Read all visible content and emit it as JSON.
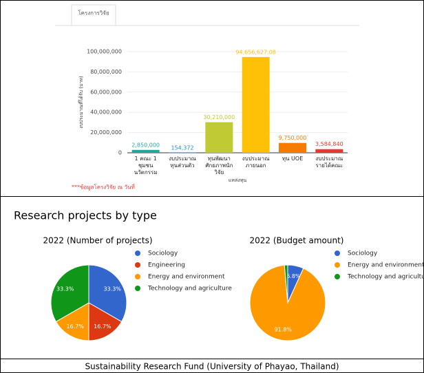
{
  "tab": "โครงการวิจัย",
  "heading": "Research projects by type",
  "caption": "Sustainability Research Fund (University of Phayao, Thailand)",
  "note": "***ข้อมูลโครงวิจัย ณ วันที่",
  "chart_data": [
    {
      "type": "bar",
      "y_label": "งบประมาณที่ได้รับ (บาท)",
      "x_label": "แหล่งทุน",
      "categories": [
        "1 คณะ 1 ชุมชน นวัตกรรม",
        "งบประมาณทุนส่วนตัว",
        "ทุนพัฒนาศักยภาพนักวิจัย",
        "งบประมาณภายนอก",
        "ทุน UOE",
        "งบประมาณรายได้คณะ"
      ],
      "values": [
        2850000,
        154372,
        30210000,
        94656627.08,
        9750000,
        3584840
      ],
      "value_labels": [
        "2,850,000",
        "154,372",
        "30,210,000",
        "94,656,627.08",
        "9,750,000",
        "3,584,840"
      ],
      "colors": [
        "#26a69a",
        "#1e88e5",
        "#c0ca33",
        "#ffc107",
        "#f57c00",
        "#e53935"
      ],
      "ylim": [
        0,
        100000000
      ],
      "yticks": [
        0,
        {
          "value": 20000000,
          "label": "20,000,000"
        },
        {
          "value": 40000000,
          "label": "40,000,000"
        },
        {
          "value": 60000000,
          "label": "60,000,000"
        },
        {
          "value": 80000000,
          "label": "80,000,000"
        },
        {
          "value": 100000000,
          "label": "100,000,000"
        }
      ],
      "grid": true
    },
    {
      "type": "pie",
      "title": "2022 (Number of projects)",
      "categories": [
        "Sociology",
        "Engineering",
        "Energy and environment",
        "Technology and agriculture"
      ],
      "values": [
        33.3,
        16.7,
        16.7,
        33.3
      ],
      "value_labels": [
        "33.3%",
        "16.7%",
        "16.7%",
        "33.3%"
      ],
      "colors": [
        "#3366cc",
        "#dc3912",
        "#ff9900",
        "#109618"
      ]
    },
    {
      "type": "pie",
      "title": "2022 (Budget amount)",
      "categories": [
        "Sociology",
        "Energy and environment",
        "Technology and agriculture"
      ],
      "values": [
        6.8,
        91.8,
        1.4
      ],
      "value_labels": [
        "6.8%",
        "91.8%",
        null
      ],
      "colors": [
        "#3366cc",
        "#ff9900",
        "#109618"
      ]
    }
  ]
}
